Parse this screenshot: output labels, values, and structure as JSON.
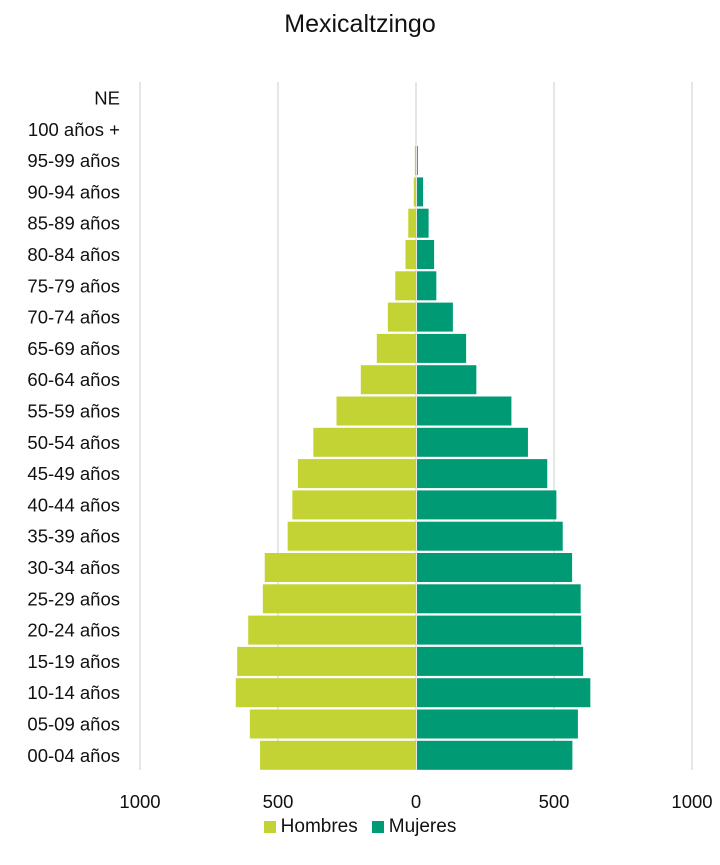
{
  "chart_data": {
    "type": "bar",
    "orientation": "horizontal",
    "title": "Mexicaltzingo",
    "categories": [
      "NE",
      "100 años +",
      "95-99 años",
      "90-94 años",
      "85-89 años",
      "80-84 años",
      "75-79 años",
      "70-74 años",
      "65-69 años",
      "60-64 años",
      "55-59 años",
      "50-54 años",
      "45-49 años",
      "40-44 años",
      "35-39 años",
      "30-34 años",
      "25-29 años",
      "20-24 años",
      "15-19 años",
      "10-14 años",
      "05-09 años",
      "00-04 años"
    ],
    "series": [
      {
        "name": "Hombres",
        "color": "#c3d334",
        "values": [
          0,
          0,
          4,
          8,
          28,
          38,
          75,
          102,
          142,
          200,
          288,
          372,
          428,
          448,
          465,
          548,
          555,
          608,
          648,
          653,
          602,
          565
        ]
      },
      {
        "name": "Mujeres",
        "color": "#009a74",
        "values": [
          0,
          0,
          3,
          22,
          42,
          62,
          70,
          130,
          178,
          215,
          342,
          402,
          472,
          505,
          528,
          562,
          593,
          595,
          602,
          628,
          583,
          563
        ]
      }
    ],
    "xticks": [
      "1000",
      "500",
      "0",
      "500",
      "1000"
    ],
    "xlim": [
      -1000,
      1000
    ],
    "grid": true,
    "legend_position": "bottom"
  }
}
